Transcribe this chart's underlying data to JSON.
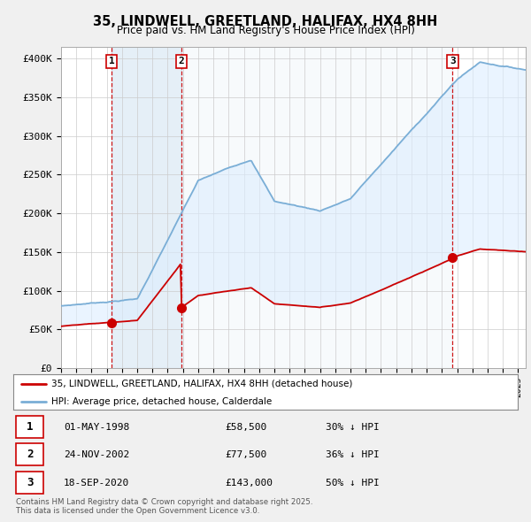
{
  "title": "35, LINDWELL, GREETLAND, HALIFAX, HX4 8HH",
  "subtitle": "Price paid vs. HM Land Registry's House Price Index (HPI)",
  "ylabel_ticks": [
    "£0",
    "£50K",
    "£100K",
    "£150K",
    "£200K",
    "£250K",
    "£300K",
    "£350K",
    "£400K"
  ],
  "ytick_values": [
    0,
    50000,
    100000,
    150000,
    200000,
    250000,
    300000,
    350000,
    400000
  ],
  "ylim": [
    0,
    415000
  ],
  "year_start": 1995,
  "year_end": 2025,
  "red_color": "#cc0000",
  "blue_color": "#7aaed6",
  "blue_fill": "#ddeeff",
  "dashed_red": "#cc0000",
  "legend_label_red": "35, LINDWELL, GREETLAND, HALIFAX, HX4 8HH (detached house)",
  "legend_label_blue": "HPI: Average price, detached house, Calderdale",
  "transactions": [
    {
      "num": 1,
      "date": "01-MAY-1998",
      "price": "£58,500",
      "hpi": "30% ↓ HPI",
      "year": 1998.33
    },
    {
      "num": 2,
      "date": "24-NOV-2002",
      "price": "£77,500",
      "hpi": "36% ↓ HPI",
      "year": 2002.9
    },
    {
      "num": 3,
      "date": "18-SEP-2020",
      "price": "£143,000",
      "hpi": "50% ↓ HPI",
      "year": 2020.7
    }
  ],
  "transaction_prices": [
    58500,
    77500,
    143000
  ],
  "footer": "Contains HM Land Registry data © Crown copyright and database right 2025.\nThis data is licensed under the Open Government Licence v3.0.",
  "bg_color": "#f0f0f0",
  "plot_bg": "#ffffff"
}
